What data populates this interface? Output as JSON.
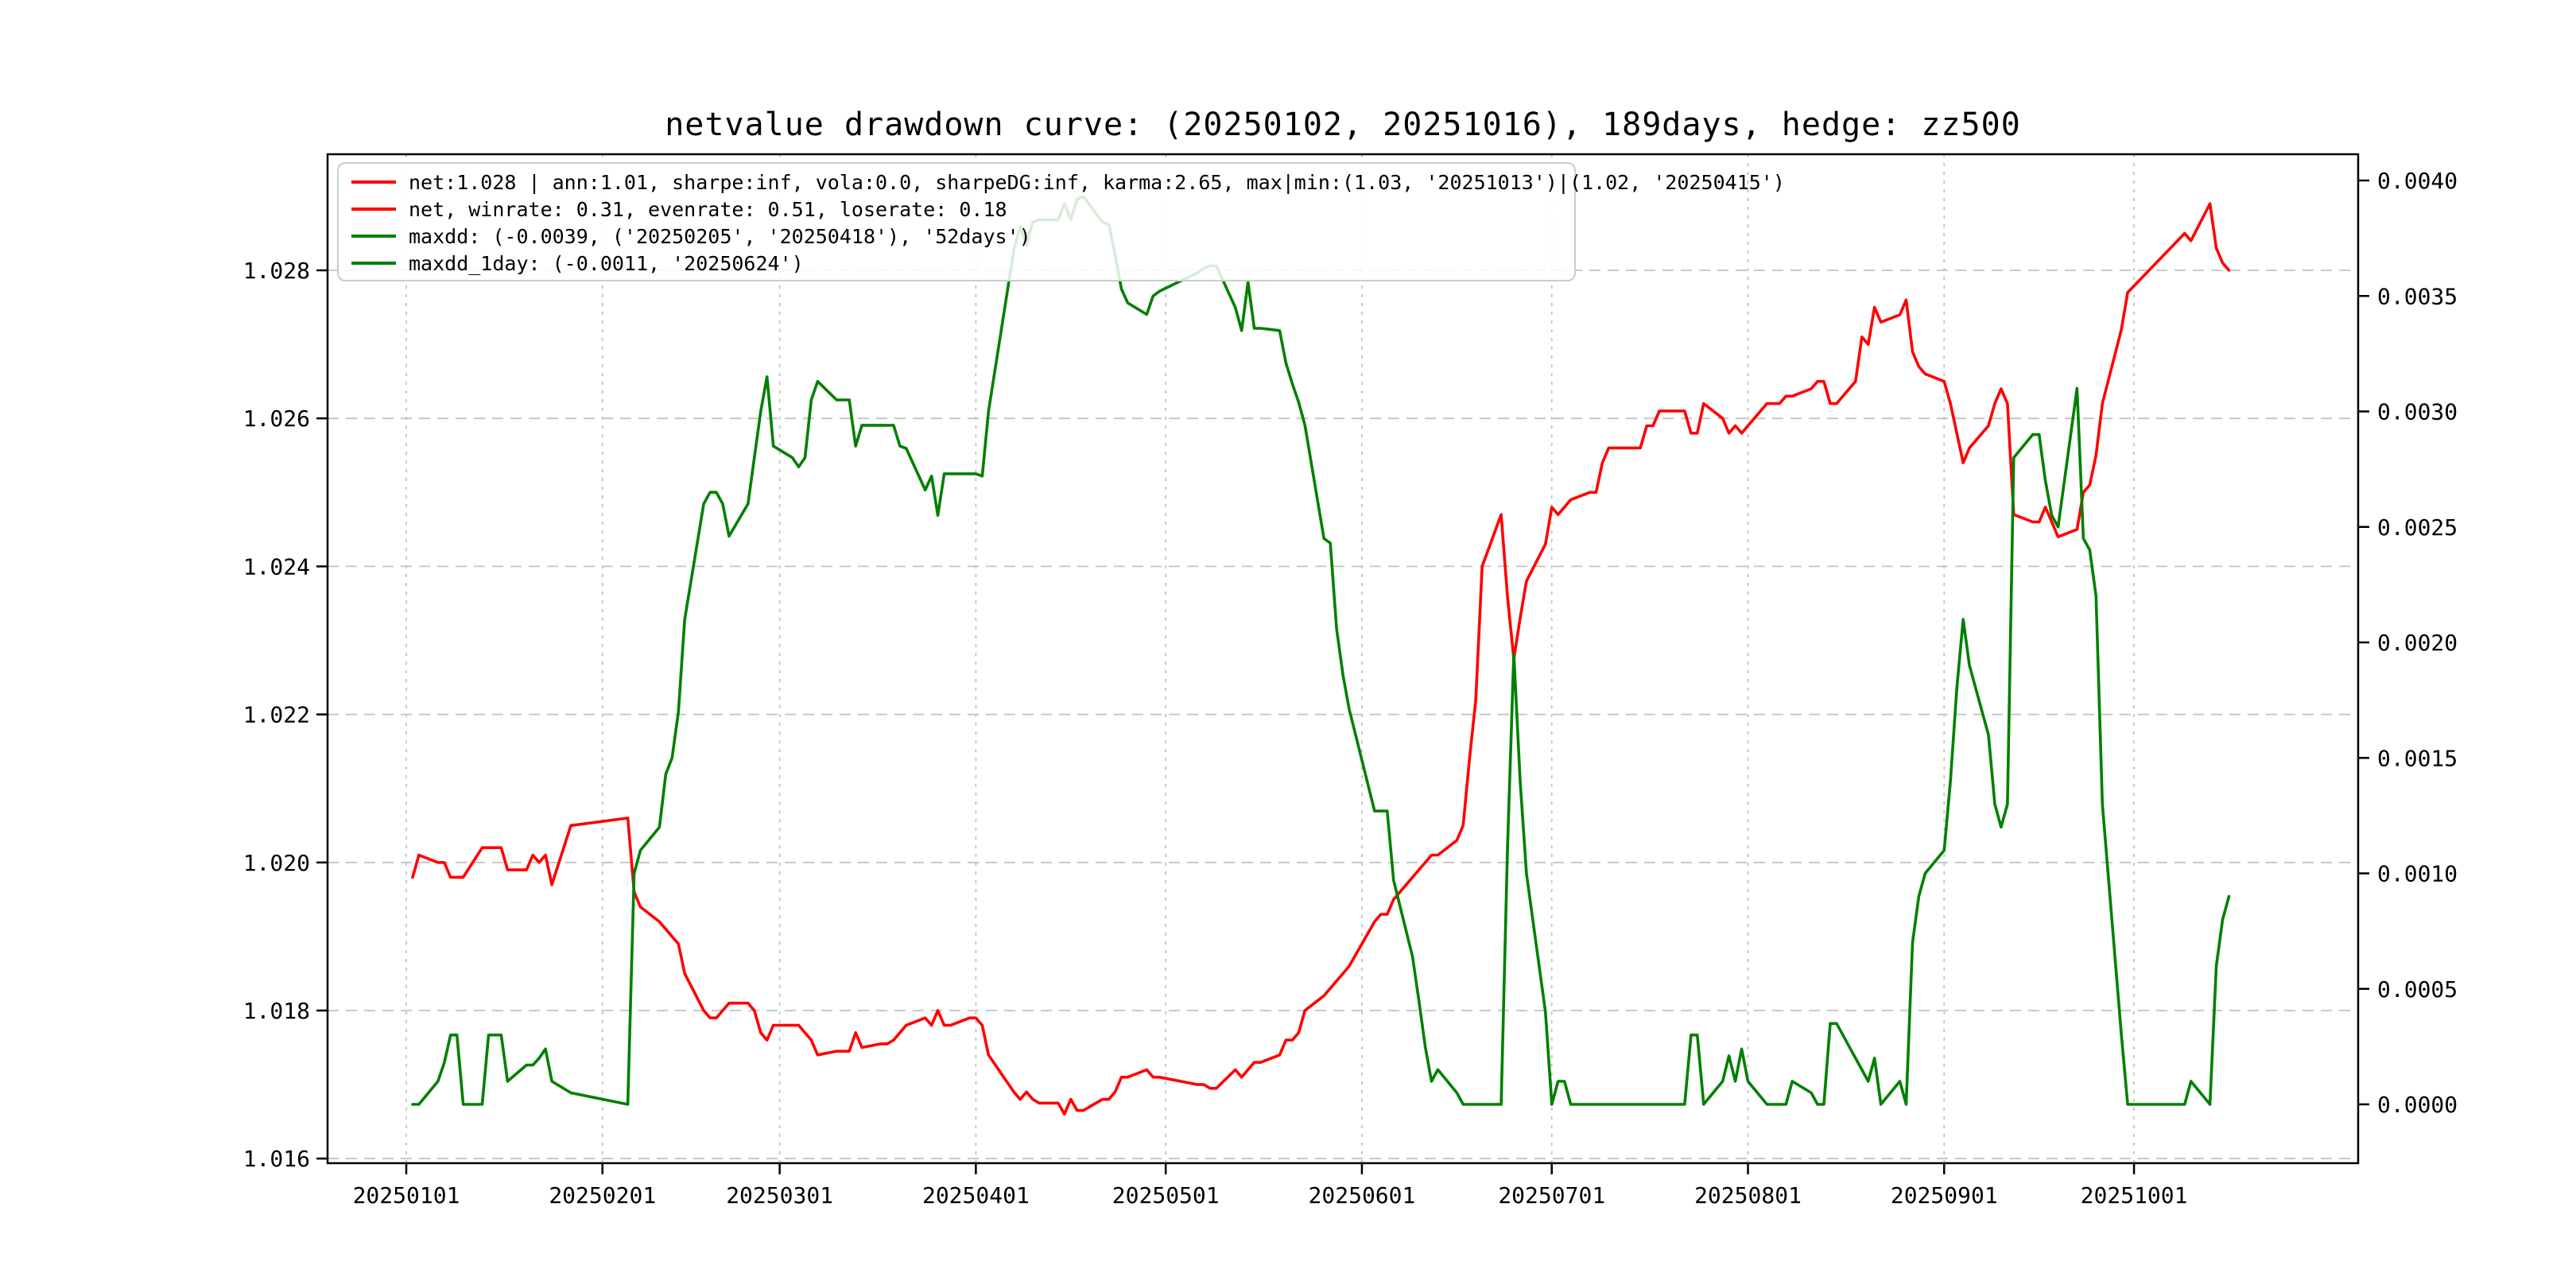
{
  "chart_data": {
    "type": "line",
    "title": "netvalue drawdown curve: (20250102, 20251016), 189days, hedge: zz500",
    "period_start": "20250102",
    "period_end": "20251016",
    "days": 189,
    "hedge": "zz500",
    "grid": true,
    "legend_position": "upper-left",
    "colors": {
      "net": "#ff0000",
      "drawdown": "#008000",
      "gridline": "#c2c2c2",
      "axis": "#000000"
    },
    "left_axis": {
      "tick_labels": [
        "1.016",
        "1.018",
        "1.020",
        "1.022",
        "1.024",
        "1.026",
        "1.028"
      ],
      "tick_values": [
        1.016,
        1.018,
        1.02,
        1.022,
        1.024,
        1.026,
        1.028
      ],
      "ylim": [
        1.0159,
        1.0296
      ]
    },
    "right_axis": {
      "tick_labels": [
        "0.0000",
        "0.0005",
        "0.0010",
        "0.0015",
        "0.0020",
        "0.0025",
        "0.0030",
        "0.0035",
        "0.0040"
      ],
      "tick_values": [
        0.0,
        0.0005,
        0.001,
        0.0015,
        0.002,
        0.0025,
        0.003,
        0.0035,
        0.004
      ],
      "ylim": [
        -0.00027,
        0.00412
      ]
    },
    "x_axis": {
      "tick_labels": [
        "20250101",
        "20250201",
        "20250301",
        "20250401",
        "20250501",
        "20250601",
        "20250701",
        "20250801",
        "20250901",
        "20251001"
      ],
      "tick_day_offsets": [
        0,
        31,
        59,
        90,
        120,
        151,
        181,
        212,
        243,
        273
      ]
    },
    "legend": {
      "items": [
        {
          "color": "#ff0000",
          "label": "net:1.028 | ann:1.01, sharpe:inf, vola:0.0, sharpeDG:inf, karma:2.65, max|min:(1.03, '20251013')|(1.02, '20250415')"
        },
        {
          "color": "#ff0000",
          "label": "net, winrate: 0.31, evenrate: 0.51, loserate: 0.18"
        },
        {
          "color": "#008000",
          "label": "maxdd: (-0.0039, ('20250205', '20250418'), '52days')"
        },
        {
          "color": "#008000",
          "label": "maxdd_1day: (-0.0011, '20250624')"
        }
      ]
    },
    "dates": [
      "20250102",
      "20250103",
      "20250106",
      "20250107",
      "20250108",
      "20250109",
      "20250110",
      "20250113",
      "20250114",
      "20250115",
      "20250116",
      "20250117",
      "20250120",
      "20250121",
      "20250122",
      "20250123",
      "20250124",
      "20250127",
      "20250205",
      "20250206",
      "20250207",
      "20250210",
      "20250211",
      "20250212",
      "20250213",
      "20250214",
      "20250217",
      "20250218",
      "20250219",
      "20250220",
      "20250221",
      "20250224",
      "20250225",
      "20250226",
      "20250227",
      "20250228",
      "20250303",
      "20250304",
      "20250305",
      "20250306",
      "20250307",
      "20250310",
      "20250311",
      "20250312",
      "20250313",
      "20250314",
      "20250317",
      "20250318",
      "20250319",
      "20250320",
      "20250321",
      "20250324",
      "20250325",
      "20250326",
      "20250327",
      "20250328",
      "20250331",
      "20250401",
      "20250402",
      "20250403",
      "20250407",
      "20250408",
      "20250409",
      "20250410",
      "20250411",
      "20250414",
      "20250415",
      "20250416",
      "20250417",
      "20250418",
      "20250421",
      "20250422",
      "20250423",
      "20250424",
      "20250425",
      "20250428",
      "20250429",
      "20250430",
      "20250506",
      "20250507",
      "20250508",
      "20250509",
      "20250512",
      "20250513",
      "20250514",
      "20250515",
      "20250516",
      "20250519",
      "20250520",
      "20250521",
      "20250522",
      "20250523",
      "20250526",
      "20250527",
      "20250528",
      "20250529",
      "20250530",
      "20250603",
      "20250604",
      "20250605",
      "20250606",
      "20250609",
      "20250610",
      "20250611",
      "20250612",
      "20250613",
      "20250616",
      "20250617",
      "20250618",
      "20250619",
      "20250620",
      "20250623",
      "20250624",
      "20250625",
      "20250626",
      "20250627",
      "20250630",
      "20250701",
      "20250702",
      "20250703",
      "20250704",
      "20250707",
      "20250708",
      "20250709",
      "20250710",
      "20250711",
      "20250714",
      "20250715",
      "20250716",
      "20250717",
      "20250718",
      "20250721",
      "20250722",
      "20250723",
      "20250724",
      "20250725",
      "20250728",
      "20250729",
      "20250730",
      "20250731",
      "20250801",
      "20250804",
      "20250805",
      "20250806",
      "20250807",
      "20250808",
      "20250811",
      "20250812",
      "20250813",
      "20250814",
      "20250815",
      "20250818",
      "20250819",
      "20250820",
      "20250821",
      "20250822",
      "20250825",
      "20250826",
      "20250827",
      "20250828",
      "20250829",
      "20250901",
      "20250902",
      "20250903",
      "20250904",
      "20250905",
      "20250908",
      "20250909",
      "20250910",
      "20250911",
      "20250912",
      "20250915",
      "20250916",
      "20250917",
      "20250918",
      "20250919",
      "20250922",
      "20250923",
      "20250924",
      "20250925",
      "20250926",
      "20250929",
      "20250930",
      "20251009",
      "20251010",
      "20251013",
      "20251014",
      "20251015",
      "20251016"
    ],
    "series": [
      {
        "name": "net",
        "axis": "left",
        "color": "#ff0000",
        "values": [
          1.0198,
          1.0201,
          1.02,
          1.02,
          1.0198,
          1.0198,
          1.0198,
          1.0202,
          1.0202,
          1.0202,
          1.0202,
          1.0199,
          1.0199,
          1.0201,
          1.02,
          1.0201,
          1.0197,
          1.0205,
          1.0206,
          1.0196,
          1.0194,
          1.0192,
          1.0191,
          1.019,
          1.0189,
          1.0185,
          1.018,
          1.0179,
          1.0179,
          1.018,
          1.0181,
          1.0181,
          1.018,
          1.0177,
          1.0176,
          1.0178,
          1.0178,
          1.0178,
          1.0177,
          1.0176,
          1.0174,
          1.01745,
          1.01745,
          1.01745,
          1.0177,
          1.0175,
          1.01755,
          1.01755,
          1.0176,
          1.0177,
          1.0178,
          1.0179,
          1.0178,
          1.018,
          1.0178,
          1.0178,
          1.0179,
          1.0179,
          1.0178,
          1.0174,
          1.0169,
          1.0168,
          1.0169,
          1.0168,
          1.01675,
          1.01675,
          1.0166,
          1.0168,
          1.01665,
          1.01665,
          1.0168,
          1.0168,
          1.0169,
          1.0171,
          1.0171,
          1.0172,
          1.0171,
          1.0171,
          1.017,
          1.017,
          1.01695,
          1.01695,
          1.0172,
          1.0171,
          1.0172,
          1.0173,
          1.0173,
          1.0174,
          1.0176,
          1.0176,
          1.0177,
          1.018,
          1.0182,
          1.0183,
          1.0184,
          1.0185,
          1.0186,
          1.0192,
          1.0193,
          1.0193,
          1.0195,
          1.0198,
          1.0199,
          1.02,
          1.0201,
          1.0201,
          1.0203,
          1.0205,
          1.0214,
          1.0222,
          1.024,
          1.0247,
          1.0236,
          1.02275,
          1.0233,
          1.0238,
          1.0243,
          1.0248,
          1.0247,
          1.0248,
          1.0249,
          1.025,
          1.025,
          1.0254,
          1.0256,
          1.0256,
          1.0256,
          1.0256,
          1.0259,
          1.0259,
          1.0261,
          1.0261,
          1.0261,
          1.0258,
          1.0258,
          1.0262,
          1.026,
          1.0258,
          1.0259,
          1.0258,
          1.0259,
          1.0262,
          1.0262,
          1.0262,
          1.0263,
          1.0263,
          1.0264,
          1.0265,
          1.0265,
          1.0262,
          1.0262,
          1.0265,
          1.0271,
          1.027,
          1.0275,
          1.0273,
          1.0274,
          1.0276,
          1.0269,
          1.0267,
          1.0266,
          1.0265,
          1.0262,
          1.0258,
          1.0254,
          1.0256,
          1.0259,
          1.0262,
          1.0264,
          1.0262,
          1.0247,
          1.0246,
          1.0246,
          1.0248,
          1.0246,
          1.0244,
          1.0245,
          1.025,
          1.0251,
          1.0255,
          1.0262,
          1.0272,
          1.0277,
          1.0285,
          1.0284,
          1.0289,
          1.0283,
          1.0281,
          1.028
        ]
      },
      {
        "name": "maxdd",
        "axis": "right",
        "color": "#008000",
        "values": [
          0,
          0,
          0.0001,
          0.00018,
          0.0003,
          0.0003,
          0,
          0,
          0.0003,
          0.0003,
          0.0003,
          0.0001,
          0.00017,
          0.00017,
          0.0002,
          0.00024,
          0.0001,
          5e-05,
          0,
          0.001,
          0.0011,
          0.0012,
          0.00143,
          0.0015,
          0.0017,
          0.0021,
          0.0026,
          0.00265,
          0.00265,
          0.0026,
          0.00246,
          0.0026,
          0.0028,
          0.003,
          0.00315,
          0.00285,
          0.0028,
          0.00276,
          0.0028,
          0.00305,
          0.00313,
          0.00305,
          0.00305,
          0.00305,
          0.00285,
          0.00294,
          0.00294,
          0.00294,
          0.00294,
          0.00285,
          0.00284,
          0.00266,
          0.00272,
          0.00255,
          0.00273,
          0.00273,
          0.00273,
          0.00273,
          0.00272,
          0.003,
          0.0037,
          0.0038,
          0.00372,
          0.00382,
          0.00383,
          0.00383,
          0.0039,
          0.00383,
          0.00392,
          0.00393,
          0.00382,
          0.00381,
          0.00368,
          0.00353,
          0.00347,
          0.00342,
          0.0035,
          0.00352,
          0.0036,
          0.00362,
          0.00363,
          0.00363,
          0.00345,
          0.00335,
          0.00356,
          0.00336,
          0.00336,
          0.00335,
          0.00321,
          0.00312,
          0.00304,
          0.00294,
          0.00245,
          0.00243,
          0.00206,
          0.00186,
          0.00171,
          0.00127,
          0.00127,
          0.00127,
          0.00097,
          0.00064,
          0.00045,
          0.00025,
          0.0001,
          0.00015,
          5e-05,
          0,
          0,
          0,
          0,
          0,
          0.0011,
          0.00195,
          0.0014,
          0.001,
          0.0004,
          0,
          0.0001,
          0.0001,
          0,
          0,
          0,
          0,
          0,
          0,
          0,
          0,
          0,
          0,
          0,
          0,
          0,
          0.0003,
          0.0003,
          0,
          0.0001,
          0.00021,
          0.0001,
          0.00024,
          0.0001,
          0,
          0,
          0,
          0,
          0.0001,
          5e-05,
          0,
          0,
          0.00035,
          0.00035,
          0.0002,
          0.00015,
          0.0001,
          0.0002,
          0,
          0.0001,
          0,
          0.0007,
          0.0009,
          0.001,
          0.0011,
          0.0014,
          0.0018,
          0.0021,
          0.0019,
          0.0016,
          0.0013,
          0.0012,
          0.0013,
          0.0028,
          0.0029,
          0.0029,
          0.0027,
          0.00255,
          0.0025,
          0.0031,
          0.00245,
          0.0024,
          0.0022,
          0.0013,
          0.0003,
          0,
          0,
          0.0001,
          0,
          0.0006,
          0.0008,
          0.0009
        ]
      }
    ]
  }
}
